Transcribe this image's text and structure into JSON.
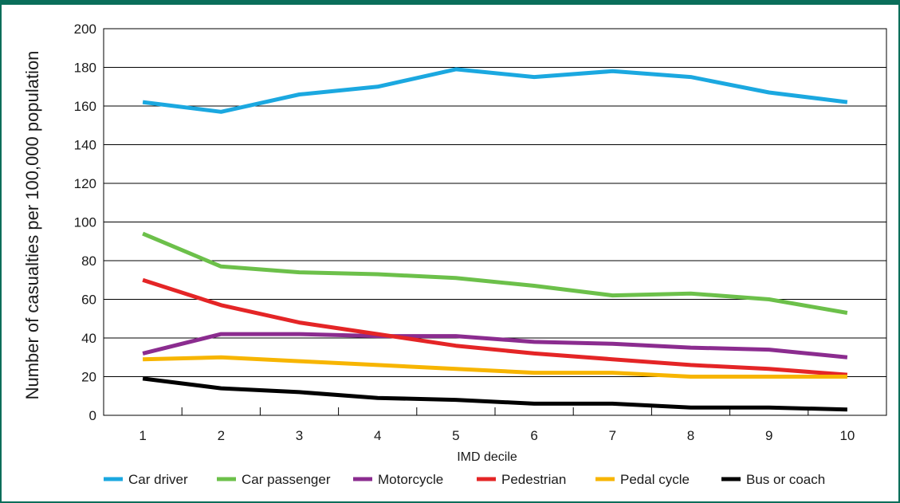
{
  "chart_data": {
    "type": "line",
    "title": "",
    "xlabel": "IMD decile",
    "ylabel": "Number of casualties per 100,000 population",
    "categories": [
      "1",
      "2",
      "3",
      "4",
      "5",
      "6",
      "7",
      "8",
      "9",
      "10"
    ],
    "ylim": [
      0,
      200
    ],
    "yticks": [
      0,
      20,
      40,
      60,
      80,
      100,
      120,
      140,
      160,
      180,
      200
    ],
    "grid": true,
    "legend_position": "bottom",
    "series": [
      {
        "name": "Car driver",
        "color": "#1ba8e0",
        "values": [
          162,
          157,
          166,
          170,
          179,
          175,
          178,
          175,
          167,
          162
        ]
      },
      {
        "name": "Car passenger",
        "color": "#6cc04a",
        "values": [
          94,
          77,
          74,
          73,
          71,
          67,
          62,
          63,
          60,
          53
        ]
      },
      {
        "name": "Motorcycle",
        "color": "#8b2c8f",
        "values": [
          32,
          42,
          42,
          41,
          41,
          38,
          37,
          35,
          34,
          30
        ]
      },
      {
        "name": "Pedestrian",
        "color": "#e42526",
        "values": [
          70,
          57,
          48,
          42,
          36,
          32,
          29,
          26,
          24,
          21
        ]
      },
      {
        "name": "Pedal cycle",
        "color": "#f7b500",
        "values": [
          29,
          30,
          28,
          26,
          24,
          22,
          22,
          20,
          20,
          20
        ]
      },
      {
        "name": "Bus or coach",
        "color": "#000000",
        "values": [
          19,
          14,
          12,
          9,
          8,
          6,
          6,
          4,
          4,
          3
        ]
      }
    ]
  }
}
